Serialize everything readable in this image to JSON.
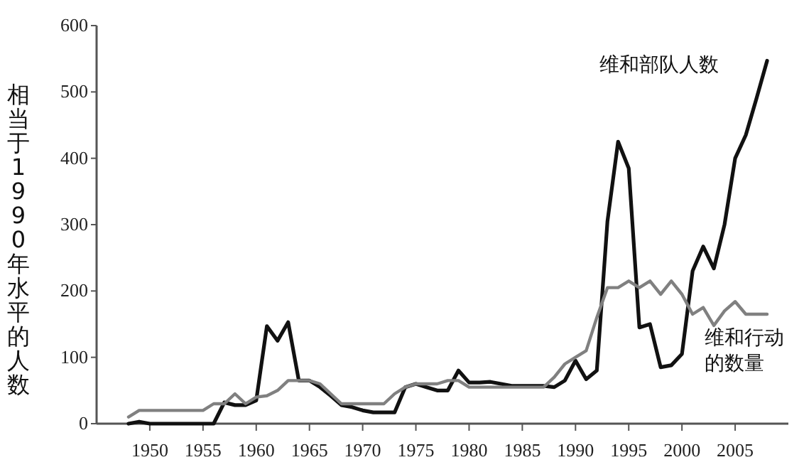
{
  "chart_data": {
    "type": "line",
    "ylabel": "相当于1990年水平的人数",
    "x": [
      1948,
      1949,
      1950,
      1951,
      1952,
      1953,
      1954,
      1955,
      1956,
      1957,
      1958,
      1959,
      1960,
      1961,
      1962,
      1963,
      1964,
      1965,
      1966,
      1967,
      1968,
      1969,
      1970,
      1971,
      1972,
      1973,
      1974,
      1975,
      1976,
      1977,
      1978,
      1979,
      1980,
      1981,
      1982,
      1983,
      1984,
      1985,
      1986,
      1987,
      1988,
      1989,
      1990,
      1991,
      1992,
      1993,
      1994,
      1995,
      1996,
      1997,
      1998,
      1999,
      2000,
      2001,
      2002,
      2003,
      2004,
      2005,
      2006,
      2007,
      2008
    ],
    "series": [
      {
        "name": "维和部队人数",
        "color": "#111111",
        "values": [
          0,
          3,
          0,
          0,
          0,
          0,
          0,
          0,
          0,
          32,
          28,
          28,
          35,
          147,
          125,
          153,
          65,
          65,
          55,
          42,
          28,
          25,
          20,
          17,
          17,
          17,
          55,
          60,
          55,
          50,
          50,
          80,
          62,
          62,
          63,
          60,
          57,
          57,
          57,
          57,
          55,
          65,
          95,
          67,
          80,
          305,
          425,
          385,
          145,
          150,
          85,
          88,
          105,
          230,
          267,
          234,
          300,
          400,
          435,
          490,
          547
        ]
      },
      {
        "name": "维和行动的数量",
        "color": "#808080",
        "values": [
          10,
          20,
          20,
          20,
          20,
          20,
          20,
          20,
          30,
          30,
          45,
          30,
          40,
          42,
          50,
          65,
          65,
          65,
          60,
          45,
          30,
          30,
          30,
          30,
          30,
          45,
          55,
          60,
          60,
          60,
          65,
          65,
          55,
          55,
          55,
          55,
          55,
          55,
          55,
          55,
          70,
          90,
          100,
          110,
          160,
          205,
          205,
          215,
          205,
          215,
          195,
          215,
          195,
          165,
          175,
          148,
          170,
          184,
          165,
          165,
          165
        ]
      }
    ],
    "xlim": [
      1945,
      2010
    ],
    "xticks": [
      1950,
      1955,
      1960,
      1965,
      1970,
      1975,
      1980,
      1985,
      1990,
      1995,
      2000,
      2005
    ],
    "ylim": [
      0,
      600
    ],
    "yticks": [
      0,
      100,
      200,
      300,
      400,
      500,
      600
    ],
    "grid": false,
    "legend": false,
    "marker": "none",
    "line_style": "solid"
  }
}
